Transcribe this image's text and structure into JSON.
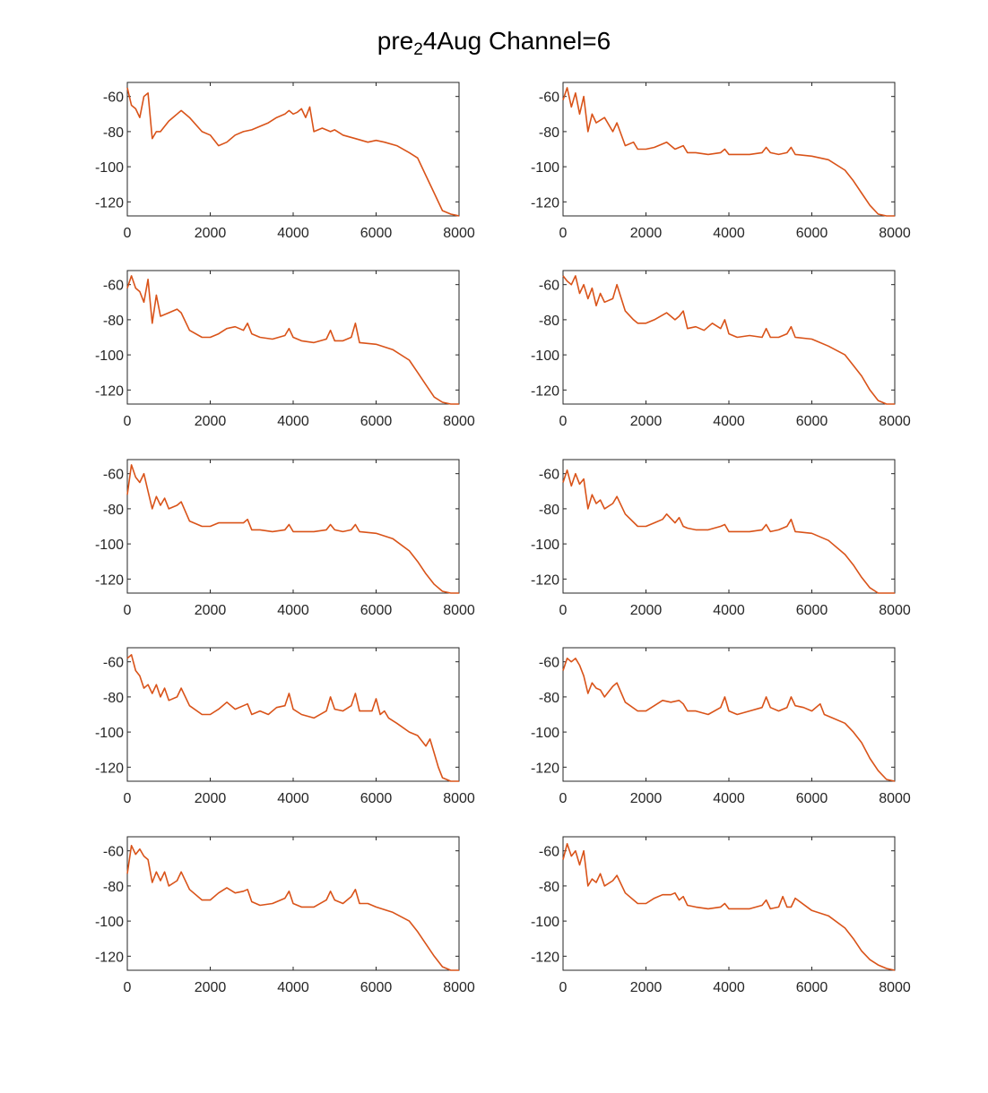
{
  "figure": {
    "title_main": "pre",
    "title_sub": "2",
    "title_rest": "4Aug Channel=6",
    "line_color": "#D95319"
  },
  "chart_data": [
    {
      "type": "line",
      "xlim": [
        0,
        8000
      ],
      "ylim": [
        -128,
        -52
      ],
      "xticks": [
        0,
        2000,
        4000,
        6000,
        8000
      ],
      "yticks": [
        -60,
        -80,
        -100,
        -120
      ],
      "grid": false,
      "x": [
        0,
        100,
        200,
        300,
        400,
        500,
        600,
        700,
        800,
        1000,
        1200,
        1300,
        1500,
        1800,
        2000,
        2200,
        2400,
        2600,
        2800,
        3000,
        3200,
        3400,
        3600,
        3800,
        3900,
        4000,
        4100,
        4200,
        4300,
        4400,
        4500,
        4700,
        4900,
        5000,
        5200,
        5500,
        5800,
        6000,
        6200,
        6500,
        6800,
        7000,
        7200,
        7400,
        7600,
        7800,
        8000
      ],
      "y": [
        -55,
        -65,
        -67,
        -72,
        -60,
        -58,
        -84,
        -80,
        -80,
        -74,
        -70,
        -68,
        -72,
        -80,
        -82,
        -88,
        -86,
        -82,
        -80,
        -79,
        -77,
        -75,
        -72,
        -70,
        -68,
        -70,
        -69,
        -67,
        -72,
        -66,
        -80,
        -78,
        -80,
        -79,
        -82,
        -84,
        -86,
        -85,
        -86,
        -88,
        -92,
        -95,
        -105,
        -115,
        -125,
        -127,
        -128
      ]
    },
    {
      "type": "line",
      "xlim": [
        0,
        8000
      ],
      "ylim": [
        -128,
        -52
      ],
      "xticks": [
        0,
        2000,
        4000,
        6000,
        8000
      ],
      "yticks": [
        -60,
        -80,
        -100,
        -120
      ],
      "grid": false,
      "x": [
        0,
        100,
        200,
        300,
        400,
        500,
        600,
        700,
        800,
        1000,
        1200,
        1300,
        1500,
        1700,
        1800,
        2000,
        2200,
        2500,
        2700,
        2900,
        3000,
        3200,
        3500,
        3800,
        3900,
        4000,
        4200,
        4500,
        4800,
        4900,
        5000,
        5200,
        5400,
        5500,
        5600,
        6000,
        6400,
        6800,
        7000,
        7200,
        7400,
        7600,
        7800,
        8000
      ],
      "y": [
        -62,
        -55,
        -66,
        -58,
        -70,
        -60,
        -80,
        -70,
        -75,
        -72,
        -80,
        -75,
        -88,
        -86,
        -90,
        -90,
        -89,
        -86,
        -90,
        -88,
        -92,
        -92,
        -93,
        -92,
        -90,
        -93,
        -93,
        -93,
        -92,
        -89,
        -92,
        -93,
        -92,
        -89,
        -93,
        -94,
        -96,
        -102,
        -108,
        -115,
        -122,
        -127,
        -128,
        -128
      ]
    },
    {
      "type": "line",
      "xlim": [
        0,
        8000
      ],
      "ylim": [
        -128,
        -52
      ],
      "xticks": [
        0,
        2000,
        4000,
        6000,
        8000
      ],
      "yticks": [
        -60,
        -80,
        -100,
        -120
      ],
      "grid": false,
      "x": [
        0,
        100,
        200,
        300,
        400,
        500,
        600,
        700,
        800,
        1000,
        1200,
        1300,
        1500,
        1800,
        2000,
        2200,
        2400,
        2600,
        2800,
        2900,
        3000,
        3200,
        3500,
        3800,
        3900,
        4000,
        4200,
        4500,
        4800,
        4900,
        5000,
        5200,
        5400,
        5500,
        5600,
        6000,
        6400,
        6800,
        7000,
        7200,
        7400,
        7600,
        7800,
        8000
      ],
      "y": [
        -62,
        -55,
        -62,
        -64,
        -70,
        -57,
        -82,
        -66,
        -78,
        -76,
        -74,
        -76,
        -86,
        -90,
        -90,
        -88,
        -85,
        -84,
        -86,
        -82,
        -88,
        -90,
        -91,
        -89,
        -85,
        -90,
        -92,
        -93,
        -91,
        -86,
        -92,
        -92,
        -90,
        -82,
        -93,
        -94,
        -97,
        -103,
        -110,
        -117,
        -124,
        -127,
        -128,
        -128
      ]
    },
    {
      "type": "line",
      "xlim": [
        0,
        8000
      ],
      "ylim": [
        -128,
        -52
      ],
      "xticks": [
        0,
        2000,
        4000,
        6000,
        8000
      ],
      "yticks": [
        -60,
        -80,
        -100,
        -120
      ],
      "grid": false,
      "x": [
        0,
        100,
        200,
        300,
        400,
        500,
        600,
        700,
        800,
        900,
        1000,
        1200,
        1300,
        1500,
        1700,
        1800,
        2000,
        2200,
        2500,
        2700,
        2800,
        2900,
        3000,
        3200,
        3400,
        3600,
        3800,
        3900,
        4000,
        4200,
        4500,
        4800,
        4900,
        5000,
        5200,
        5400,
        5500,
        5600,
        6000,
        6400,
        6800,
        7000,
        7200,
        7400,
        7600,
        7800,
        8000
      ],
      "y": [
        -55,
        -58,
        -60,
        -55,
        -65,
        -60,
        -68,
        -62,
        -72,
        -65,
        -70,
        -68,
        -60,
        -75,
        -80,
        -82,
        -82,
        -80,
        -76,
        -80,
        -78,
        -75,
        -85,
        -84,
        -86,
        -82,
        -85,
        -80,
        -88,
        -90,
        -89,
        -90,
        -85,
        -90,
        -90,
        -88,
        -84,
        -90,
        -91,
        -95,
        -100,
        -106,
        -112,
        -120,
        -126,
        -128,
        -128
      ]
    },
    {
      "type": "line",
      "xlim": [
        0,
        8000
      ],
      "ylim": [
        -128,
        -52
      ],
      "xticks": [
        0,
        2000,
        4000,
        6000,
        8000
      ],
      "yticks": [
        -60,
        -80,
        -100,
        -120
      ],
      "grid": false,
      "x": [
        0,
        100,
        200,
        300,
        400,
        500,
        600,
        700,
        800,
        900,
        1000,
        1200,
        1300,
        1500,
        1800,
        2000,
        2200,
        2400,
        2600,
        2800,
        2900,
        3000,
        3200,
        3500,
        3800,
        3900,
        4000,
        4200,
        4500,
        4800,
        4900,
        5000,
        5200,
        5400,
        5500,
        5600,
        6000,
        6400,
        6800,
        7000,
        7200,
        7400,
        7600,
        7800,
        8000
      ],
      "y": [
        -72,
        -55,
        -62,
        -65,
        -60,
        -70,
        -80,
        -73,
        -78,
        -74,
        -80,
        -78,
        -76,
        -87,
        -90,
        -90,
        -88,
        -88,
        -88,
        -88,
        -86,
        -92,
        -92,
        -93,
        -92,
        -89,
        -93,
        -93,
        -93,
        -92,
        -89,
        -92,
        -93,
        -92,
        -89,
        -93,
        -94,
        -97,
        -104,
        -110,
        -117,
        -123,
        -127,
        -128,
        -128
      ]
    },
    {
      "type": "line",
      "xlim": [
        0,
        8000
      ],
      "ylim": [
        -128,
        -52
      ],
      "xticks": [
        0,
        2000,
        4000,
        6000,
        8000
      ],
      "yticks": [
        -60,
        -80,
        -100,
        -120
      ],
      "grid": false,
      "x": [
        0,
        100,
        200,
        300,
        400,
        500,
        600,
        700,
        800,
        900,
        1000,
        1200,
        1300,
        1500,
        1800,
        2000,
        2200,
        2400,
        2500,
        2700,
        2800,
        2900,
        3000,
        3200,
        3500,
        3800,
        3900,
        4000,
        4200,
        4500,
        4800,
        4900,
        5000,
        5200,
        5400,
        5500,
        5600,
        6000,
        6400,
        6800,
        7000,
        7200,
        7400,
        7600,
        7800,
        8000
      ],
      "y": [
        -65,
        -58,
        -67,
        -60,
        -66,
        -63,
        -80,
        -72,
        -77,
        -75,
        -80,
        -77,
        -73,
        -83,
        -90,
        -90,
        -88,
        -86,
        -83,
        -88,
        -85,
        -90,
        -91,
        -92,
        -92,
        -90,
        -89,
        -93,
        -93,
        -93,
        -92,
        -89,
        -93,
        -92,
        -90,
        -86,
        -93,
        -94,
        -98,
        -106,
        -112,
        -119,
        -125,
        -128,
        -128,
        -128
      ]
    },
    {
      "type": "line",
      "xlim": [
        0,
        8000
      ],
      "ylim": [
        -128,
        -52
      ],
      "xticks": [
        0,
        2000,
        4000,
        6000,
        8000
      ],
      "yticks": [
        -60,
        -80,
        -100,
        -120
      ],
      "grid": false,
      "x": [
        0,
        100,
        200,
        300,
        400,
        500,
        600,
        700,
        800,
        900,
        1000,
        1200,
        1300,
        1500,
        1800,
        2000,
        2200,
        2400,
        2600,
        2800,
        2900,
        3000,
        3200,
        3400,
        3600,
        3800,
        3900,
        4000,
        4200,
        4500,
        4800,
        4900,
        5000,
        5200,
        5400,
        5500,
        5600,
        5900,
        6000,
        6100,
        6200,
        6300,
        6500,
        6800,
        7000,
        7200,
        7300,
        7400,
        7500,
        7600,
        7800,
        8000
      ],
      "y": [
        -58,
        -56,
        -65,
        -68,
        -75,
        -73,
        -78,
        -73,
        -80,
        -75,
        -82,
        -80,
        -75,
        -85,
        -90,
        -90,
        -87,
        -83,
        -87,
        -85,
        -84,
        -90,
        -88,
        -90,
        -86,
        -85,
        -78,
        -87,
        -90,
        -92,
        -88,
        -80,
        -87,
        -88,
        -85,
        -78,
        -88,
        -88,
        -81,
        -90,
        -88,
        -92,
        -95,
        -100,
        -102,
        -108,
        -104,
        -112,
        -120,
        -126,
        -128,
        -128
      ]
    },
    {
      "type": "line",
      "xlim": [
        0,
        8000
      ],
      "ylim": [
        -128,
        -52
      ],
      "xticks": [
        0,
        2000,
        4000,
        6000,
        8000
      ],
      "yticks": [
        -60,
        -80,
        -100,
        -120
      ],
      "grid": false,
      "x": [
        0,
        100,
        200,
        300,
        400,
        500,
        600,
        700,
        800,
        900,
        1000,
        1200,
        1300,
        1500,
        1800,
        2000,
        2200,
        2400,
        2600,
        2800,
        2900,
        3000,
        3200,
        3500,
        3800,
        3900,
        4000,
        4200,
        4500,
        4800,
        4900,
        5000,
        5200,
        5400,
        5500,
        5600,
        5800,
        6000,
        6200,
        6300,
        6500,
        6800,
        7000,
        7200,
        7400,
        7600,
        7800,
        8000
      ],
      "y": [
        -65,
        -58,
        -60,
        -58,
        -62,
        -68,
        -78,
        -72,
        -75,
        -76,
        -80,
        -74,
        -72,
        -83,
        -88,
        -88,
        -85,
        -82,
        -83,
        -82,
        -84,
        -88,
        -88,
        -90,
        -86,
        -80,
        -88,
        -90,
        -88,
        -86,
        -80,
        -86,
        -88,
        -86,
        -80,
        -85,
        -86,
        -88,
        -84,
        -90,
        -92,
        -95,
        -100,
        -106,
        -115,
        -122,
        -127,
        -128
      ]
    },
    {
      "type": "line",
      "xlim": [
        0,
        8000
      ],
      "ylim": [
        -128,
        -52
      ],
      "xticks": [
        0,
        2000,
        4000,
        6000,
        8000
      ],
      "yticks": [
        -60,
        -80,
        -100,
        -120
      ],
      "grid": false,
      "x": [
        0,
        100,
        200,
        300,
        400,
        500,
        600,
        700,
        800,
        900,
        1000,
        1200,
        1300,
        1500,
        1800,
        2000,
        2200,
        2400,
        2600,
        2800,
        2900,
        3000,
        3200,
        3500,
        3800,
        3900,
        4000,
        4200,
        4500,
        4800,
        4900,
        5000,
        5200,
        5400,
        5500,
        5600,
        5800,
        6000,
        6400,
        6800,
        7000,
        7200,
        7400,
        7600,
        7800,
        8000
      ],
      "y": [
        -73,
        -57,
        -62,
        -59,
        -63,
        -65,
        -78,
        -72,
        -77,
        -72,
        -80,
        -77,
        -72,
        -82,
        -88,
        -88,
        -84,
        -81,
        -84,
        -83,
        -82,
        -89,
        -91,
        -90,
        -87,
        -83,
        -90,
        -92,
        -92,
        -88,
        -83,
        -88,
        -90,
        -86,
        -82,
        -90,
        -90,
        -92,
        -95,
        -100,
        -106,
        -113,
        -120,
        -126,
        -128,
        -128
      ]
    },
    {
      "type": "line",
      "xlim": [
        0,
        8000
      ],
      "ylim": [
        -128,
        -52
      ],
      "xticks": [
        0,
        2000,
        4000,
        6000,
        8000
      ],
      "yticks": [
        -60,
        -80,
        -100,
        -120
      ],
      "grid": false,
      "x": [
        0,
        100,
        200,
        300,
        400,
        500,
        600,
        700,
        800,
        900,
        1000,
        1200,
        1300,
        1500,
        1800,
        2000,
        2200,
        2400,
        2600,
        2700,
        2800,
        2900,
        3000,
        3200,
        3500,
        3800,
        3900,
        4000,
        4200,
        4500,
        4800,
        4900,
        5000,
        5200,
        5300,
        5400,
        5500,
        5600,
        6000,
        6400,
        6800,
        7000,
        7200,
        7400,
        7600,
        7800,
        8000
      ],
      "y": [
        -65,
        -56,
        -63,
        -60,
        -68,
        -60,
        -80,
        -76,
        -78,
        -73,
        -80,
        -77,
        -74,
        -84,
        -90,
        -90,
        -87,
        -85,
        -85,
        -84,
        -88,
        -86,
        -91,
        -92,
        -93,
        -92,
        -90,
        -93,
        -93,
        -93,
        -91,
        -88,
        -93,
        -92,
        -86,
        -92,
        -92,
        -87,
        -94,
        -97,
        -104,
        -110,
        -117,
        -122,
        -125,
        -127,
        -128
      ]
    }
  ]
}
